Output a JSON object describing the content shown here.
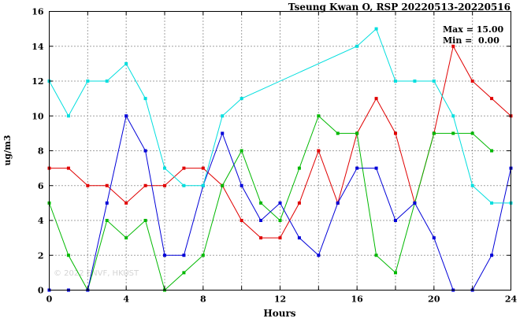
{
  "title": "Tseung Kwan O, RSP 20220513-20220516",
  "stats": {
    "max_label": "Max = 15.00",
    "min_label": "Min =  0.00"
  },
  "watermark": "© 2022 ENVF, HKUST",
  "chart_data": {
    "type": "line",
    "title": "Tseung Kwan O, RSP 20220513-20220516",
    "xlabel": "Hours",
    "ylabel": "ug/m3",
    "xlim": [
      0,
      24
    ],
    "ylim": [
      0,
      16
    ],
    "xticks": [
      0,
      4,
      8,
      12,
      16,
      20,
      24
    ],
    "yticks": [
      0,
      2,
      4,
      6,
      8,
      10,
      12,
      14,
      16
    ],
    "grid": true,
    "legend": "none",
    "marker": "square",
    "series": [
      {
        "name": "red",
        "color": "#e00000",
        "x": [
          0,
          1,
          2,
          3,
          4,
          5,
          6,
          7,
          8,
          9,
          10,
          11,
          12,
          13,
          14,
          15,
          16,
          17,
          18,
          19,
          20,
          21,
          22,
          23,
          24
        ],
        "values": [
          7,
          7,
          6,
          6,
          5,
          6,
          6,
          7,
          7,
          6,
          4,
          3,
          3,
          5,
          8,
          5,
          9,
          11,
          9,
          5,
          9,
          14,
          12,
          11,
          10
        ]
      },
      {
        "name": "green",
        "color": "#00b800",
        "x": [
          0,
          1,
          2,
          3,
          4,
          5,
          6,
          7,
          8,
          9,
          10,
          11,
          12,
          13,
          14,
          15,
          16,
          17,
          18,
          19,
          20,
          21,
          22,
          23
        ],
        "values": [
          5,
          2,
          0,
          4,
          3,
          4,
          0,
          1,
          2,
          6,
          8,
          5,
          4,
          7,
          10,
          9,
          9,
          2,
          1,
          5,
          9,
          9,
          9,
          8
        ]
      },
      {
        "name": "blue",
        "color": "#0000d8",
        "x": [
          0,
          1,
          2,
          3,
          4,
          5,
          6,
          7,
          8,
          9,
          10,
          11,
          12,
          13,
          14,
          15,
          16,
          17,
          18,
          19,
          20,
          21,
          22,
          23,
          24
        ],
        "values": [
          0,
          0,
          0,
          5,
          10,
          8,
          2,
          2,
          6,
          9,
          6,
          4,
          5,
          3,
          2,
          5,
          7,
          7,
          4,
          5,
          3,
          0,
          0,
          2,
          7
        ]
      },
      {
        "name": "cyan",
        "color": "#00dede",
        "x": [
          0,
          1,
          2,
          3,
          4,
          5,
          6,
          7,
          8,
          9,
          10,
          16,
          17,
          18,
          19,
          20,
          21,
          22,
          23,
          24
        ],
        "values": [
          12,
          10,
          12,
          12,
          13,
          11,
          7,
          6,
          6,
          10,
          11,
          14,
          15,
          12,
          12,
          12,
          10,
          6,
          5,
          5
        ]
      }
    ]
  }
}
